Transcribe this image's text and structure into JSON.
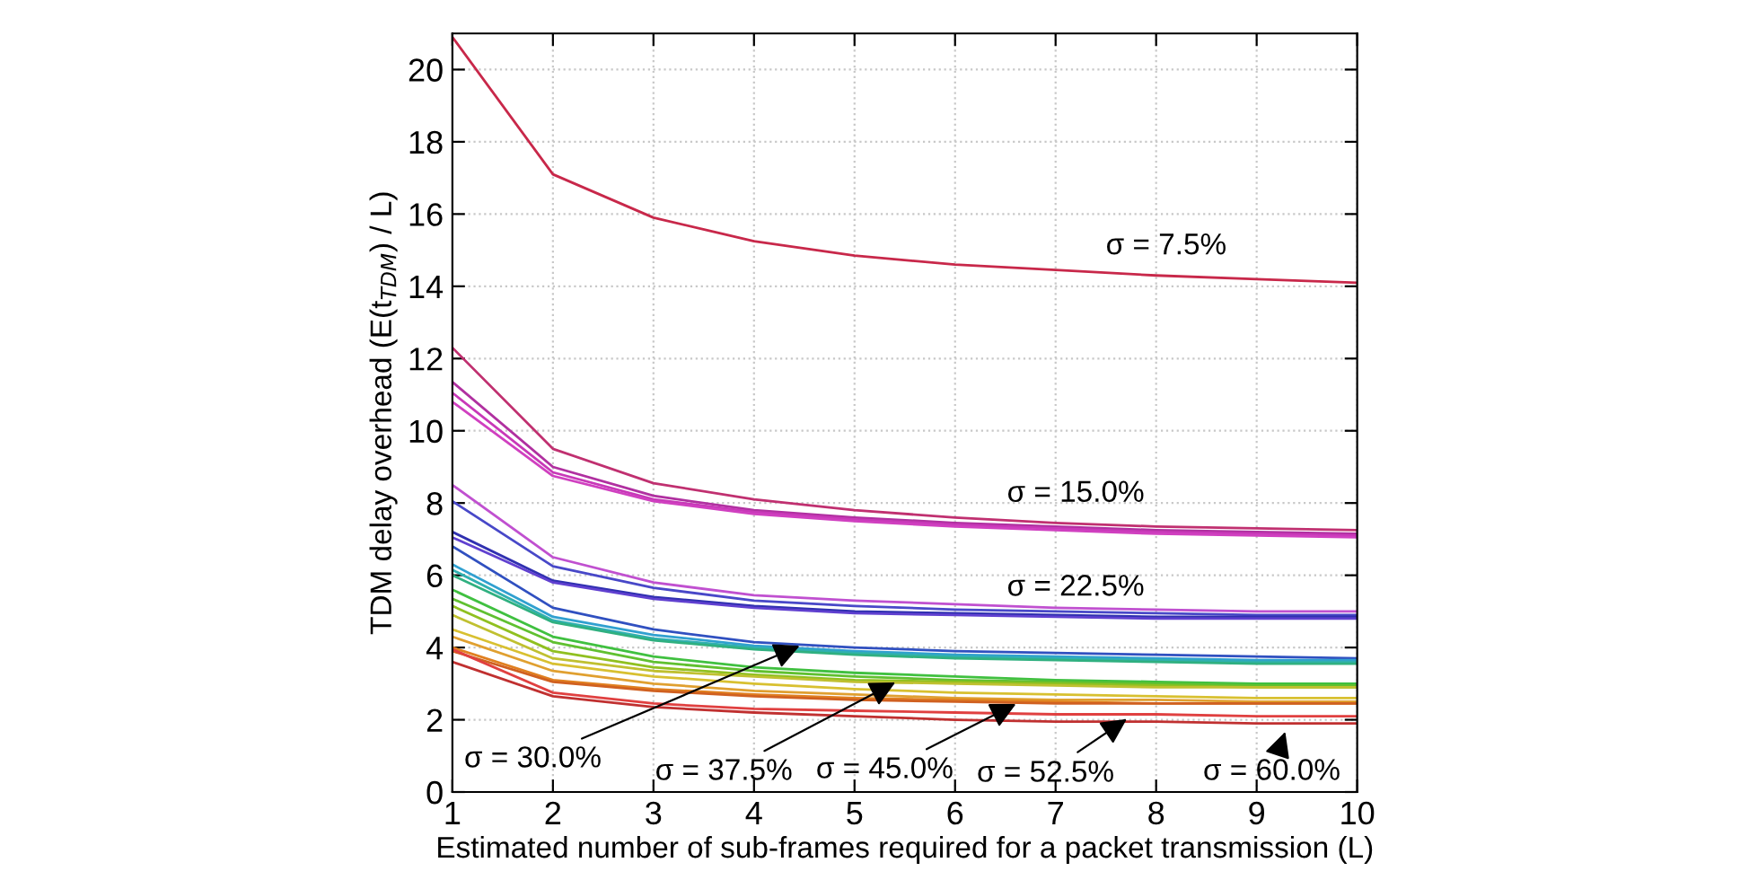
{
  "chart_data": {
    "type": "line",
    "xlabel": "Estimated number of sub-frames required for a packet transmission (L)",
    "ylabel": "TDM delay overhead (E(t$_{TDM}$) / L)",
    "x": [
      1,
      2,
      3,
      4,
      5,
      6,
      7,
      8,
      9,
      10
    ],
    "xlim": [
      1,
      10
    ],
    "xticks": [
      1,
      2,
      3,
      4,
      5,
      6,
      7,
      8,
      9,
      10
    ],
    "ylim": [
      0,
      21
    ],
    "yticks": [
      0,
      2,
      4,
      6,
      8,
      10,
      12,
      14,
      16,
      18,
      20
    ],
    "grid": true,
    "marker": "none",
    "line_style": "solid",
    "series": [
      {
        "color": "#c8284a",
        "values": [
          20.9,
          17.1,
          15.9,
          15.25,
          14.85,
          14.6,
          14.45,
          14.3,
          14.2,
          14.1
        ]
      },
      {
        "color": "#c03070",
        "values": [
          12.3,
          9.5,
          8.55,
          8.1,
          7.8,
          7.6,
          7.45,
          7.35,
          7.3,
          7.25
        ]
      },
      {
        "color": "#b030a0",
        "values": [
          11.35,
          9.0,
          8.2,
          7.8,
          7.6,
          7.45,
          7.35,
          7.25,
          7.2,
          7.15
        ]
      },
      {
        "color": "#c838b8",
        "values": [
          11.05,
          8.85,
          8.1,
          7.75,
          7.55,
          7.4,
          7.3,
          7.2,
          7.15,
          7.1
        ]
      },
      {
        "color": "#d040c0",
        "values": [
          10.8,
          8.75,
          8.05,
          7.7,
          7.5,
          7.35,
          7.25,
          7.15,
          7.1,
          7.05
        ]
      },
      {
        "color": "#c050d0",
        "values": [
          8.5,
          6.5,
          5.8,
          5.45,
          5.3,
          5.2,
          5.1,
          5.05,
          5.0,
          5.0
        ]
      },
      {
        "color": "#4848c8",
        "values": [
          8.05,
          6.25,
          5.65,
          5.3,
          5.15,
          5.05,
          5.0,
          4.95,
          4.9,
          4.9
        ]
      },
      {
        "color": "#3030b0",
        "values": [
          7.2,
          5.85,
          5.4,
          5.15,
          5.0,
          4.95,
          4.9,
          4.85,
          4.85,
          4.85
        ]
      },
      {
        "color": "#6040d0",
        "values": [
          7.05,
          5.8,
          5.35,
          5.1,
          4.95,
          4.9,
          4.85,
          4.8,
          4.8,
          4.8
        ]
      },
      {
        "color": "#3050c0",
        "values": [
          6.8,
          5.1,
          4.5,
          4.15,
          4.0,
          3.9,
          3.85,
          3.8,
          3.75,
          3.7
        ]
      },
      {
        "color": "#30a0d0",
        "values": [
          6.3,
          4.85,
          4.35,
          4.05,
          3.9,
          3.8,
          3.75,
          3.7,
          3.65,
          3.65
        ]
      },
      {
        "color": "#30b0b0",
        "values": [
          6.15,
          4.75,
          4.25,
          4.0,
          3.85,
          3.75,
          3.7,
          3.65,
          3.6,
          3.6
        ]
      },
      {
        "color": "#30b080",
        "values": [
          6.0,
          4.7,
          4.2,
          3.95,
          3.8,
          3.7,
          3.65,
          3.6,
          3.55,
          3.55
        ]
      },
      {
        "color": "#40c040",
        "values": [
          5.6,
          4.3,
          3.75,
          3.45,
          3.3,
          3.2,
          3.1,
          3.05,
          3.0,
          3.0
        ]
      },
      {
        "color": "#60c030",
        "values": [
          5.35,
          4.15,
          3.6,
          3.35,
          3.2,
          3.1,
          3.05,
          3.0,
          2.95,
          2.95
        ]
      },
      {
        "color": "#90c020",
        "values": [
          5.15,
          3.9,
          3.45,
          3.25,
          3.1,
          3.05,
          3.0,
          2.95,
          2.9,
          2.9
        ]
      },
      {
        "color": "#c0c030",
        "values": [
          4.9,
          3.7,
          3.35,
          3.2,
          3.05,
          3.0,
          2.95,
          2.9,
          2.9,
          2.9
        ]
      },
      {
        "color": "#d8c030",
        "values": [
          4.5,
          3.55,
          3.2,
          3.0,
          2.85,
          2.75,
          2.7,
          2.65,
          2.6,
          2.6
        ]
      },
      {
        "color": "#e0a030",
        "values": [
          4.3,
          3.35,
          3.0,
          2.8,
          2.7,
          2.6,
          2.55,
          2.55,
          2.5,
          2.5
        ]
      },
      {
        "color": "#e08020",
        "values": [
          4.0,
          3.1,
          2.85,
          2.7,
          2.6,
          2.55,
          2.5,
          2.45,
          2.45,
          2.45
        ]
      },
      {
        "color": "#d06020",
        "values": [
          3.9,
          3.05,
          2.8,
          2.65,
          2.55,
          2.5,
          2.45,
          2.45,
          2.45,
          2.45
        ]
      },
      {
        "color": "#e04040",
        "values": [
          3.95,
          2.75,
          2.45,
          2.3,
          2.25,
          2.2,
          2.15,
          2.15,
          2.1,
          2.1
        ]
      },
      {
        "color": "#c03030",
        "values": [
          3.6,
          2.65,
          2.35,
          2.2,
          2.1,
          2.0,
          1.95,
          1.95,
          1.9,
          1.9
        ]
      }
    ],
    "annotations": [
      {
        "text": "σ = 7.5%",
        "x": 8.1,
        "y": 14.35
      },
      {
        "text": "σ = 15.0%",
        "x": 7.2,
        "y": 7.4
      },
      {
        "text": "σ = 22.5%",
        "x": 7.2,
        "y": 5.05
      },
      {
        "text": "σ = 30.0%",
        "x": 4.5,
        "y": 4.1
      },
      {
        "text": "σ = 37.5%",
        "x": 5.45,
        "y": 3.1
      },
      {
        "text": "σ = 45.0%",
        "x": 6.65,
        "y": 2.5
      },
      {
        "text": "σ = 52.5%",
        "x": 7.75,
        "y": 2.1
      },
      {
        "text": "σ = 60.0%",
        "x": 9.3,
        "y": 1.8
      }
    ]
  }
}
